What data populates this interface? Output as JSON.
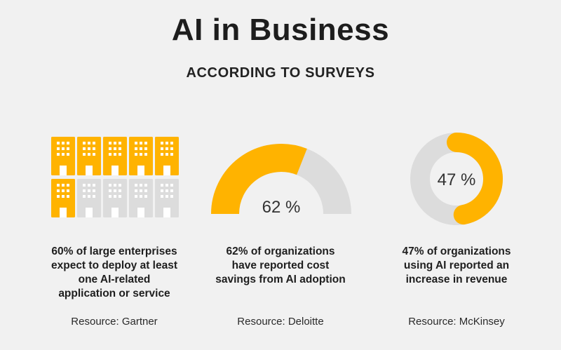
{
  "header": {
    "title": "AI in Business",
    "subtitle": "ACCORDING TO SURVEYS"
  },
  "colors": {
    "accent": "#ffb300",
    "track": "#dcdcdc",
    "background": "#f1f1f1"
  },
  "chart_data": [
    {
      "type": "pictogram",
      "icon": "building-icon",
      "total_icons": 10,
      "highlighted_icons": 6,
      "value_percent": 60,
      "description": "60% of large enterprises expect to deploy at least one AI-related application or service",
      "description_lines": [
        "60% of large enterprises",
        "expect to deploy at least",
        "one AI-related",
        "application or service"
      ],
      "source": "Resource: Gartner"
    },
    {
      "type": "gauge",
      "value_percent": 62,
      "value_label": "62 %",
      "description": "62% of organizations have reported cost savings from AI adoption",
      "description_lines": [
        "62% of organizations",
        "have reported cost",
        "savings from AI adoption"
      ],
      "source": "Resource: Deloitte"
    },
    {
      "type": "donut",
      "value_percent": 47,
      "value_label": "47 %",
      "description": "47% of organizations using AI reported an increase in revenue",
      "description_lines": [
        "47% of organizations",
        "using AI reported an",
        "increase in revenue"
      ],
      "source": "Resource: McKinsey"
    }
  ]
}
